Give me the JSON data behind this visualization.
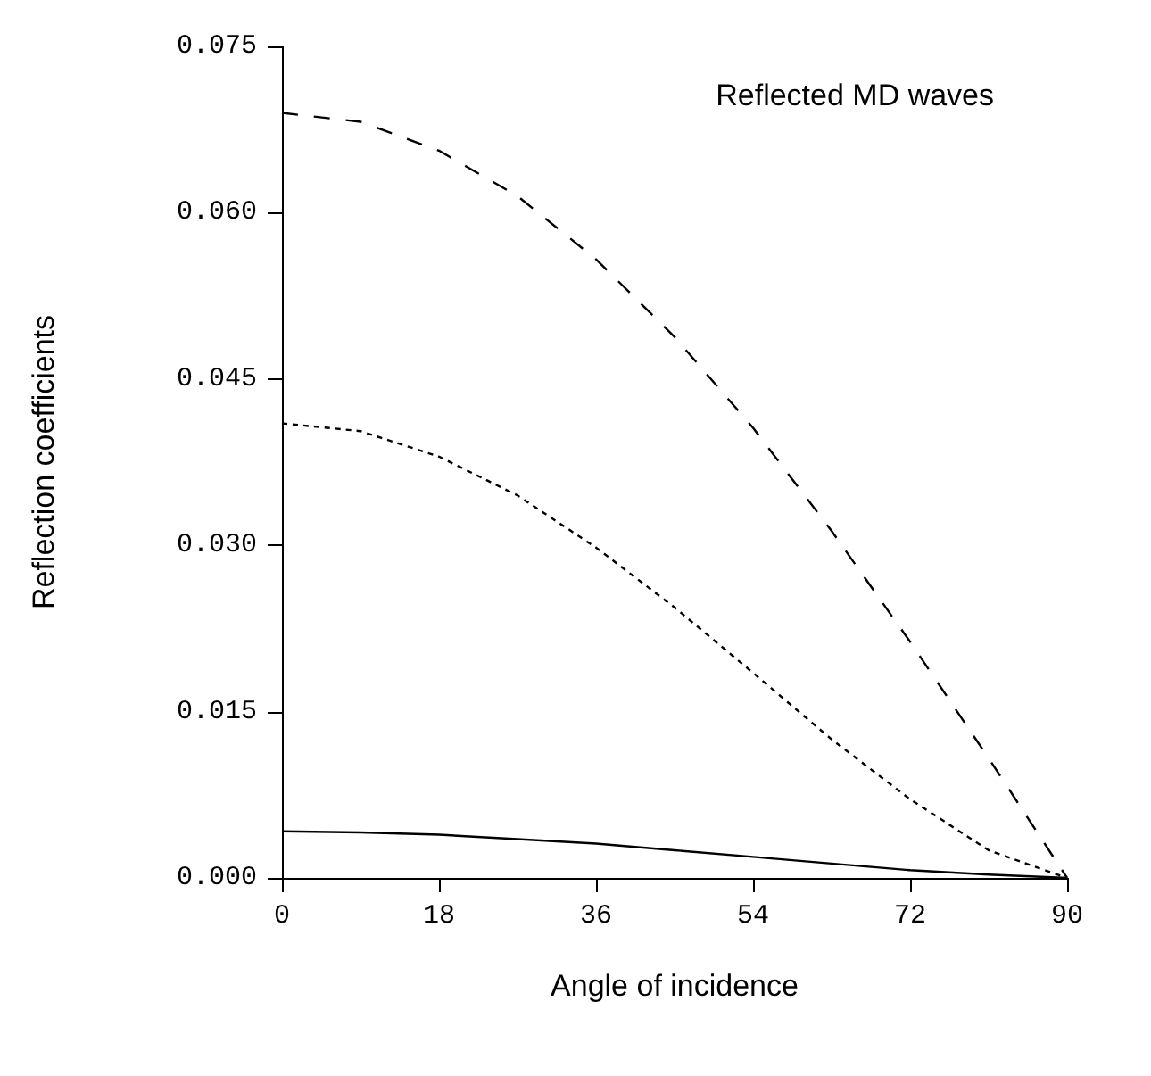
{
  "chart_data": {
    "type": "line",
    "title": "Reflected MD waves",
    "xlabel": "Angle of incidence",
    "ylabel": "Reflection coefficients",
    "x": [
      0,
      9,
      18,
      27,
      36,
      45,
      54,
      63,
      72,
      81,
      90
    ],
    "series": [
      {
        "color": "#000000",
        "line_style": "dashed",
        "values": [
          0.069,
          0.0682,
          0.0656,
          0.0615,
          0.0558,
          0.0488,
          0.0406,
          0.0313,
          0.0213,
          0.0108,
          0
        ]
      },
      {
        "color": "#000000",
        "line_style": "dotted",
        "values": [
          0.041,
          0.0403,
          0.038,
          0.0345,
          0.0298,
          0.0244,
          0.0185,
          0.0125,
          0.0071,
          0.0025,
          0
        ]
      },
      {
        "color": "#000000",
        "line_style": "solid",
        "values": [
          0.0042,
          0.0041,
          0.0039,
          0.0035,
          0.0031,
          0.0025,
          0.0019,
          0.0013,
          0.0007,
          0.0003,
          0
        ]
      }
    ],
    "xlim": [
      0,
      90
    ],
    "xticks": [
      0,
      18,
      36,
      54,
      72,
      90
    ],
    "ylim": [
      0,
      0.075
    ],
    "yticks": [
      {
        "value": 0,
        "label": "0.000"
      },
      {
        "value": 0.015,
        "label": "0.015"
      },
      {
        "value": 0.03,
        "label": "0.030"
      },
      {
        "value": 0.045,
        "label": "0.045"
      },
      {
        "value": 0.06,
        "label": "0.060"
      },
      {
        "value": 0.075,
        "label": "0.075"
      }
    ],
    "grid": false,
    "marker": "none"
  }
}
